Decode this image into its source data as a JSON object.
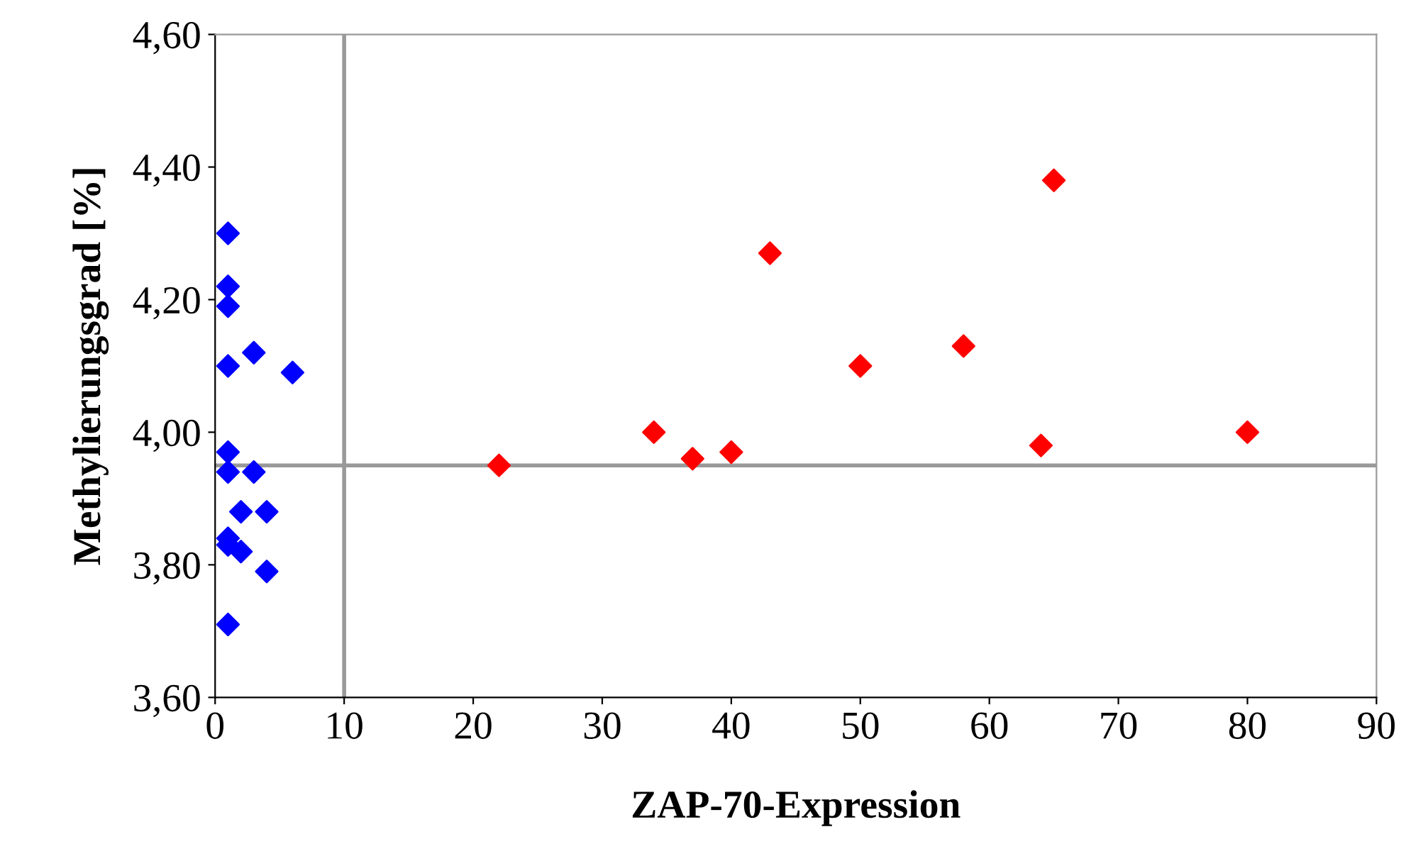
{
  "chart_data": {
    "type": "scatter",
    "xlabel": "ZAP-70-Expression",
    "ylabel": "Methylierungsgrad [%]",
    "series": [
      {
        "color": "#0000ff",
        "x": [
          1,
          1,
          1,
          3,
          1,
          6,
          1,
          1,
          3,
          2,
          4,
          1,
          1,
          2,
          4,
          1
        ],
        "values": [
          4.3,
          4.22,
          4.19,
          4.12,
          4.1,
          4.09,
          3.97,
          3.94,
          3.94,
          3.88,
          3.88,
          3.84,
          3.83,
          3.82,
          3.79,
          3.71
        ]
      },
      {
        "color": "#ff0000",
        "x": [
          22,
          34,
          37,
          40,
          43,
          50,
          58,
          64,
          65,
          80
        ],
        "values": [
          3.95,
          4.0,
          3.96,
          3.97,
          4.27,
          4.1,
          4.13,
          3.98,
          4.38,
          4.0
        ]
      }
    ],
    "marker": "diamond",
    "grid": false,
    "legend": false,
    "xlim": [
      0,
      90
    ],
    "xticks": [
      0,
      10,
      20,
      30,
      40,
      50,
      60,
      70,
      80,
      90
    ],
    "ylim": [
      3.6,
      4.6
    ],
    "yticks": [
      {
        "value": 3.6,
        "label": "3,60"
      },
      {
        "value": 3.8,
        "label": "3,80"
      },
      {
        "value": 4.0,
        "label": "4,00"
      },
      {
        "value": 4.2,
        "label": "4,20"
      },
      {
        "value": 4.4,
        "label": "4,40"
      },
      {
        "value": 4.6,
        "label": "4,60"
      }
    ],
    "ref_lines": [
      {
        "axis": "x",
        "value": 10,
        "color": "#999999"
      },
      {
        "axis": "y",
        "value": 3.95,
        "color": "#999999"
      }
    ]
  }
}
